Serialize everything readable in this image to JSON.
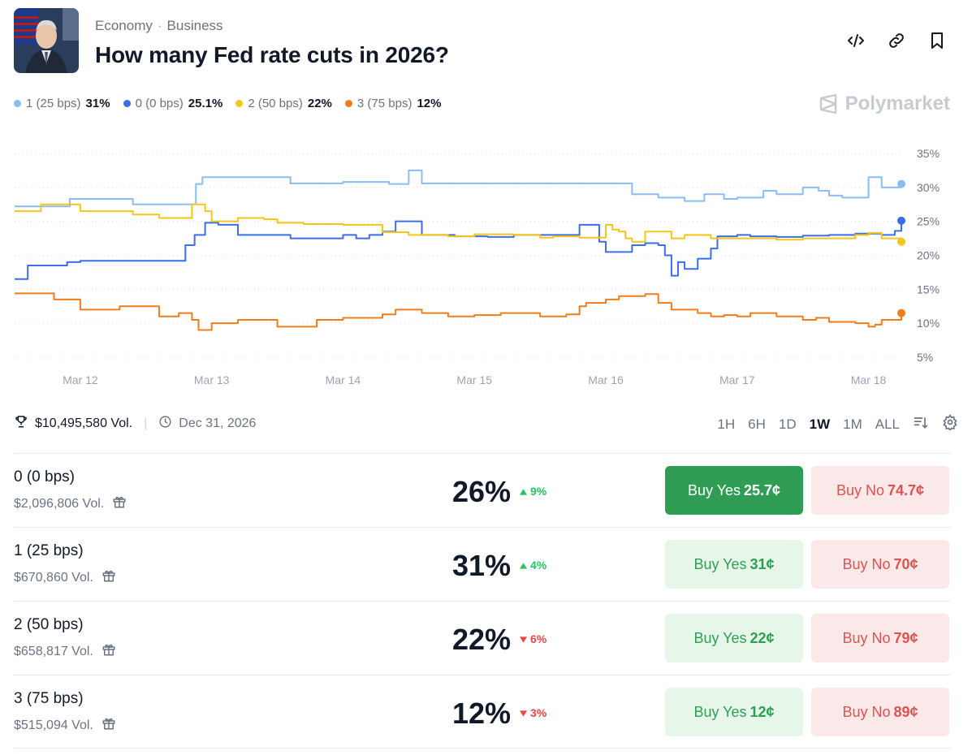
{
  "header": {
    "categories": [
      "Economy",
      "Business"
    ],
    "title": "How many Fed rate cuts in 2026?",
    "icons": [
      "embed-icon",
      "link-icon",
      "bookmark-icon"
    ]
  },
  "legend": [
    {
      "label": "1 (25 bps)",
      "value": "31%",
      "color": "#8bbcf2"
    },
    {
      "label": "0 (0 bps)",
      "value": "25.1%",
      "color": "#3b6ee8"
    },
    {
      "label": "2 (50 bps)",
      "value": "22%",
      "color": "#f5c518"
    },
    {
      "label": "3 (75 bps)",
      "value": "12%",
      "color": "#ef7d1c"
    }
  ],
  "brand": "Polymarket",
  "chart_data": {
    "type": "line",
    "x_ticks": [
      "Mar 12",
      "Mar 13",
      "Mar 14",
      "Mar 15",
      "Mar 16",
      "Mar 17",
      "Mar 18"
    ],
    "y_ticks": [
      "35%",
      "30%",
      "25%",
      "20%",
      "15%",
      "10%",
      "5%"
    ],
    "ylim": [
      5,
      35
    ],
    "xlim": [
      11.5,
      18.25
    ],
    "grid": true,
    "series": [
      {
        "name": "1 (25 bps)",
        "color": "#8bbcf2",
        "x": [
          11.5,
          11.9,
          11.92,
          12.3,
          12.4,
          12.85,
          12.88,
          12.93,
          13.0,
          13.3,
          13.6,
          14.0,
          14.35,
          14.5,
          14.6,
          15.2,
          15.7,
          16.0,
          16.2,
          16.4,
          16.6,
          16.75,
          16.9,
          17.0,
          17.2,
          17.3,
          17.5,
          17.62,
          17.7,
          17.8,
          18.0,
          18.05,
          18.1,
          18.25
        ],
        "y": [
          27.2,
          27.2,
          28.3,
          28.3,
          27.5,
          27.5,
          30.5,
          31.5,
          31.5,
          31.5,
          30.6,
          30.8,
          30.5,
          32.5,
          30.6,
          30.6,
          30.6,
          30.6,
          29.0,
          28.5,
          28.0,
          29.0,
          28.3,
          28.5,
          29.5,
          29.0,
          30.0,
          29.5,
          28.8,
          28.5,
          31.5,
          31.5,
          30.0,
          30.5
        ]
      },
      {
        "name": "0 (0 bps)",
        "color": "#3b6ee8",
        "x": [
          11.5,
          11.6,
          11.75,
          11.9,
          12.0,
          12.3,
          12.7,
          12.8,
          12.87,
          12.95,
          13.05,
          13.2,
          13.4,
          13.6,
          13.8,
          14.0,
          14.1,
          14.2,
          14.3,
          14.4,
          14.6,
          14.85,
          15.1,
          15.3,
          15.5,
          15.8,
          15.9,
          15.95,
          16.0,
          16.2,
          16.3,
          16.4,
          16.45,
          16.5,
          16.55,
          16.6,
          16.7,
          16.8,
          16.85,
          17.0,
          17.1,
          17.3,
          17.5,
          17.7,
          17.9,
          18.1,
          18.2,
          18.25
        ],
        "y": [
          16.5,
          18.5,
          18.5,
          19.0,
          19.2,
          19.2,
          19.2,
          21.5,
          23.0,
          24.8,
          24.5,
          23.0,
          23.0,
          22.5,
          22.5,
          23.0,
          22.5,
          23.0,
          23.5,
          25.0,
          23.0,
          22.8,
          22.7,
          23.0,
          23.0,
          24.5,
          24.5,
          22.0,
          20.5,
          21.5,
          21.8,
          21.5,
          20.0,
          17.0,
          19.0,
          18.0,
          19.5,
          21.0,
          22.8,
          23.0,
          22.8,
          22.7,
          22.9,
          23.0,
          23.2,
          23.0,
          23.6,
          25.1
        ]
      },
      {
        "name": "2 (50 bps)",
        "color": "#f5c518",
        "x": [
          11.5,
          11.65,
          11.7,
          11.95,
          12.0,
          12.3,
          12.4,
          12.55,
          12.6,
          12.8,
          12.85,
          12.95,
          13.0,
          13.2,
          13.4,
          13.5,
          13.7,
          14.0,
          14.3,
          14.5,
          14.8,
          15.0,
          15.3,
          15.5,
          15.6,
          15.8,
          16.0,
          16.05,
          16.1,
          16.15,
          16.2,
          16.3,
          16.5,
          16.6,
          16.8,
          17.0,
          17.2,
          17.3,
          17.5,
          17.7,
          17.9,
          18.0,
          18.1,
          18.25
        ],
        "y": [
          26.5,
          26.5,
          27.5,
          27.5,
          26.5,
          26.5,
          26.0,
          26.0,
          25.5,
          25.5,
          27.5,
          26.5,
          25.0,
          25.5,
          25.3,
          24.8,
          24.6,
          24.5,
          23.4,
          23.0,
          22.8,
          23.1,
          23.0,
          22.6,
          22.8,
          22.6,
          24.5,
          23.8,
          23.5,
          22.5,
          22.0,
          23.5,
          22.5,
          23.0,
          22.5,
          22.5,
          22.5,
          22.3,
          22.5,
          22.5,
          23.0,
          23.3,
          22.5,
          22.0
        ]
      },
      {
        "name": "3 (75 bps)",
        "color": "#ef7d1c",
        "x": [
          11.5,
          11.7,
          11.8,
          11.85,
          12.0,
          12.3,
          12.4,
          12.55,
          12.6,
          12.75,
          12.85,
          12.9,
          13.0,
          13.2,
          13.5,
          13.8,
          14.0,
          14.3,
          14.4,
          14.6,
          14.8,
          15.0,
          15.2,
          15.5,
          15.7,
          15.8,
          15.85,
          16.0,
          16.1,
          16.3,
          16.4,
          16.5,
          16.6,
          16.7,
          16.8,
          16.9,
          17.0,
          17.1,
          17.3,
          17.5,
          17.6,
          17.7,
          17.9,
          18.0,
          18.05,
          18.1,
          18.25
        ],
        "y": [
          14.4,
          14.4,
          13.5,
          13.5,
          12.0,
          12.5,
          12.5,
          12.5,
          11.0,
          11.5,
          10.5,
          9.0,
          10.0,
          10.5,
          9.5,
          10.5,
          10.8,
          11.3,
          12.0,
          11.5,
          11.0,
          11.2,
          11.5,
          11.0,
          11.3,
          12.5,
          13.0,
          13.5,
          14.0,
          14.3,
          13.0,
          12.0,
          12.0,
          11.5,
          11.0,
          11.2,
          11.0,
          11.5,
          11.0,
          10.5,
          10.8,
          10.2,
          10.0,
          9.5,
          9.8,
          10.5,
          11.5
        ]
      }
    ]
  },
  "info": {
    "volume": "$10,495,580 Vol.",
    "date": "Dec 31, 2026",
    "ranges": [
      "1H",
      "6H",
      "1D",
      "1W",
      "1M",
      "ALL"
    ],
    "active_range": "1W"
  },
  "outcomes": [
    {
      "name": "0 (0 bps)",
      "volume": "$2,096,806 Vol.",
      "pct": "26%",
      "change": "9%",
      "direction": "up",
      "yes_label": "Buy Yes",
      "yes_price": "25.7¢",
      "no_label": "Buy No",
      "no_price": "74.7¢",
      "primary": true
    },
    {
      "name": "1 (25 bps)",
      "volume": "$670,860 Vol.",
      "pct": "31%",
      "change": "4%",
      "direction": "up",
      "yes_label": "Buy Yes",
      "yes_price": "31¢",
      "no_label": "Buy No",
      "no_price": "70¢",
      "primary": false
    },
    {
      "name": "2 (50 bps)",
      "volume": "$658,817 Vol.",
      "pct": "22%",
      "change": "6%",
      "direction": "down",
      "yes_label": "Buy Yes",
      "yes_price": "22¢",
      "no_label": "Buy No",
      "no_price": "79¢",
      "primary": false
    },
    {
      "name": "3 (75 bps)",
      "volume": "$515,094 Vol.",
      "pct": "12%",
      "change": "3%",
      "direction": "down",
      "yes_label": "Buy Yes",
      "yes_price": "12¢",
      "no_label": "Buy No",
      "no_price": "89¢",
      "primary": false
    }
  ]
}
